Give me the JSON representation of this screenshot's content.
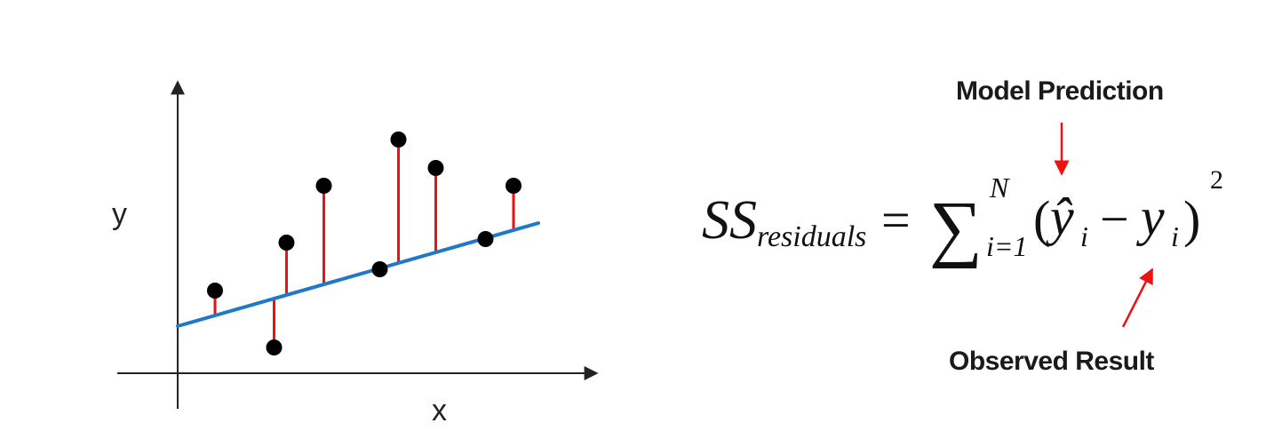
{
  "plot": {
    "x_axis_label": "x",
    "y_axis_label": "y",
    "colors": {
      "axis": "#222222",
      "fit_line": "#1f78c8",
      "residual": "#ee1111",
      "point": "#000000"
    },
    "fit_line": {
      "intercept": 0.0,
      "slope": 0.5
    },
    "points": [
      {
        "x": 0.6,
        "y": 1.0
      },
      {
        "x": 1.55,
        "y": -0.6
      },
      {
        "x": 1.75,
        "y": 2.35
      },
      {
        "x": 2.35,
        "y": 3.95
      },
      {
        "x": 3.25,
        "y": 1.6
      },
      {
        "x": 3.55,
        "y": 5.25
      },
      {
        "x": 4.15,
        "y": 4.45
      },
      {
        "x": 4.95,
        "y": 2.45
      },
      {
        "x": 5.4,
        "y": 3.95
      }
    ]
  },
  "formula": {
    "lhs": "SS",
    "lhs_subscript": "residuals",
    "equals": "=",
    "sum_symbol": "∑",
    "sum_upper": "N",
    "sum_lower": "i=1",
    "open_paren": "(",
    "yhat": "ŷ",
    "yhat_subscript": "i",
    "minus": "−",
    "y": "y",
    "y_subscript": "i",
    "close_paren": ")",
    "exponent": "2"
  },
  "annotations": {
    "model_prediction": "Model Prediction",
    "observed_result": "Observed Result",
    "arrow_color": "#ee1111"
  }
}
